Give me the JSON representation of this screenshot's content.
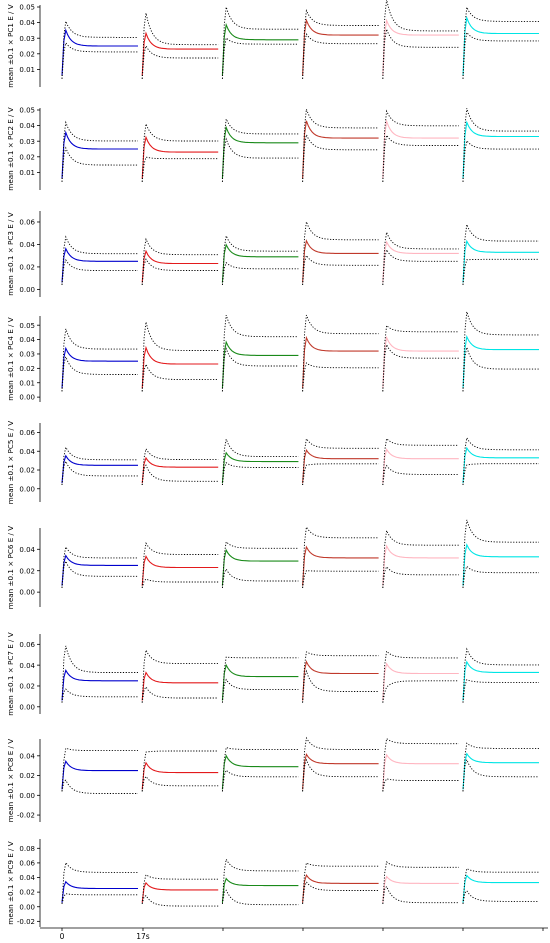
{
  "figure": {
    "x_tick_labels": [
      "0",
      "17s"
    ],
    "segment_colors": [
      "#0000cd",
      "#e31a1c",
      "#1a8a1a",
      "#c0392b",
      "#ffb6c1",
      "#00e5e5"
    ],
    "panel_count": 9
  },
  "chart_data": [
    {
      "type": "line",
      "ylabel": "mean ±0.1 × PC1   E / V",
      "yticks": [
        "0.01",
        "0.02",
        "0.03",
        "0.04",
        "0.05"
      ],
      "ylim": [
        0.0,
        0.05
      ],
      "grid": false,
      "legend": "none",
      "series": [
        {
          "name": "",
          "plateau": [
            0.025,
            0.023,
            0.029,
            0.032,
            0.032,
            0.033
          ]
        }
      ]
    },
    {
      "type": "line",
      "ylabel": "mean ±0.1 × PC2   E / V",
      "yticks": [
        "0.01",
        "0.02",
        "0.03",
        "0.04",
        "0.05"
      ],
      "ylim": [
        0.0,
        0.05
      ],
      "grid": false,
      "legend": "none",
      "series": [
        {
          "name": "",
          "plateau": [
            0.025,
            0.023,
            0.029,
            0.032,
            0.032,
            0.033
          ]
        }
      ]
    },
    {
      "type": "line",
      "ylabel": "mean ±0.1 × PC3   E / V",
      "yticks": [
        "0.00",
        "0.02",
        "0.04",
        "0.06"
      ],
      "ylim": [
        -0.005,
        0.068
      ],
      "grid": false,
      "legend": "none",
      "series": [
        {
          "name": "",
          "plateau": [
            0.025,
            0.023,
            0.029,
            0.032,
            0.032,
            0.033
          ]
        }
      ]
    },
    {
      "type": "line",
      "ylabel": "mean ±0.1 × PC4   E / V",
      "yticks": [
        "0.00",
        "0.01",
        "0.02",
        "0.03",
        "0.04",
        "0.05"
      ],
      "ylim": [
        -0.002,
        0.055
      ],
      "grid": false,
      "legend": "none",
      "series": [
        {
          "name": "",
          "plateau": [
            0.025,
            0.023,
            0.029,
            0.032,
            0.032,
            0.033
          ]
        }
      ]
    },
    {
      "type": "line",
      "ylabel": "mean ±0.1 × PC5   E / V",
      "yticks": [
        "0.00",
        "0.02",
        "0.04",
        "0.06"
      ],
      "ylim": [
        -0.012,
        0.068
      ],
      "grid": false,
      "legend": "none",
      "series": [
        {
          "name": "",
          "plateau": [
            0.025,
            0.023,
            0.029,
            0.032,
            0.032,
            0.033
          ]
        }
      ]
    },
    {
      "type": "line",
      "ylabel": "mean ±0.1 × PC6   E / V",
      "yticks": [
        "0.00",
        "0.02",
        "0.04"
      ],
      "ylim": [
        -0.012,
        0.058
      ],
      "grid": false,
      "legend": "none",
      "series": [
        {
          "name": "",
          "plateau": [
            0.025,
            0.023,
            0.029,
            0.032,
            0.032,
            0.033
          ]
        }
      ]
    },
    {
      "type": "line",
      "ylabel": "mean ±0.1 × PC7   E / V",
      "yticks": [
        "0.00",
        "0.02",
        "0.04",
        "0.06"
      ],
      "ylim": [
        -0.005,
        0.068
      ],
      "grid": false,
      "legend": "none",
      "series": [
        {
          "name": "",
          "plateau": [
            0.025,
            0.023,
            0.029,
            0.032,
            0.032,
            0.033
          ]
        }
      ]
    },
    {
      "type": "line",
      "ylabel": "mean ±0.1 × PC8   E / V",
      "yticks": [
        "-0.02",
        "0.00",
        "0.02",
        "0.04"
      ],
      "ylim": [
        -0.025,
        0.055
      ],
      "grid": false,
      "legend": "none",
      "series": [
        {
          "name": "",
          "plateau": [
            0.025,
            0.023,
            0.029,
            0.032,
            0.032,
            0.033
          ]
        }
      ]
    },
    {
      "type": "line",
      "ylabel": "mean ±0.1 × PC9   E / V",
      "yticks": [
        "-0.02",
        "0.00",
        "0.02",
        "0.04",
        "0.06",
        "0.08"
      ],
      "ylim": [
        -0.025,
        0.09
      ],
      "grid": false,
      "legend": "none",
      "series": [
        {
          "name": "",
          "plateau": [
            0.025,
            0.023,
            0.029,
            0.032,
            0.032,
            0.033
          ]
        }
      ]
    }
  ]
}
